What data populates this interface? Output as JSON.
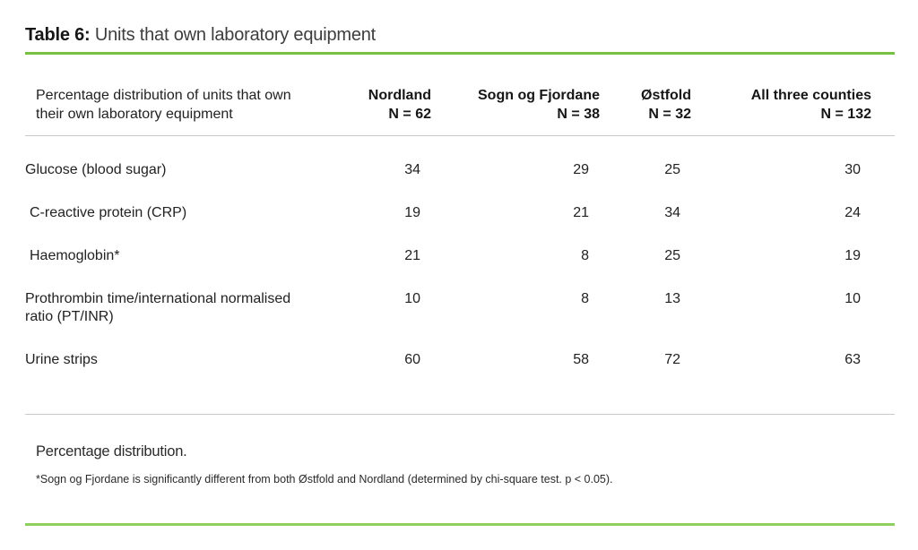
{
  "title": {
    "prefix": "Table 6:",
    "text": " Units that own laboratory equipment"
  },
  "table": {
    "stub_header": "Percentage distribution of units that own their own laboratory equipment",
    "columns": [
      {
        "label": "Nordland",
        "n": "N = 62"
      },
      {
        "label": "Sogn og Fjordane",
        "n": "N = 38"
      },
      {
        "label": "Østfold",
        "n": "N = 32"
      },
      {
        "label": "All three counties",
        "n": "N = 132"
      }
    ],
    "rows": [
      {
        "label": "Glucose (blood sugar)",
        "values": [
          "34",
          "29",
          "25",
          "30"
        ]
      },
      {
        "label": "C-reactive protein (CRP)",
        "values": [
          "19",
          "21",
          "34",
          "24"
        ]
      },
      {
        "label": "Haemoglobin*",
        "values": [
          "21",
          "8",
          "25",
          "19"
        ]
      },
      {
        "label": "Prothrombin time/international normalised ratio (PT/INR)",
        "values": [
          "10",
          "8",
          "13",
          "10"
        ]
      },
      {
        "label": "Urine strips",
        "values": [
          "60",
          "58",
          "72",
          "63"
        ]
      }
    ]
  },
  "footer": {
    "note": "Percentage distribution.",
    "footnote": "*Sogn og Fjordane is significantly different from both Østfold and Nordland (determined by chi-square test. p < 0.05)."
  },
  "colors": {
    "accent_green_top": "#77c044",
    "accent_green_bottom": "#8ed05f",
    "divider_gray": "#c9c9c9",
    "text": "#222222"
  }
}
